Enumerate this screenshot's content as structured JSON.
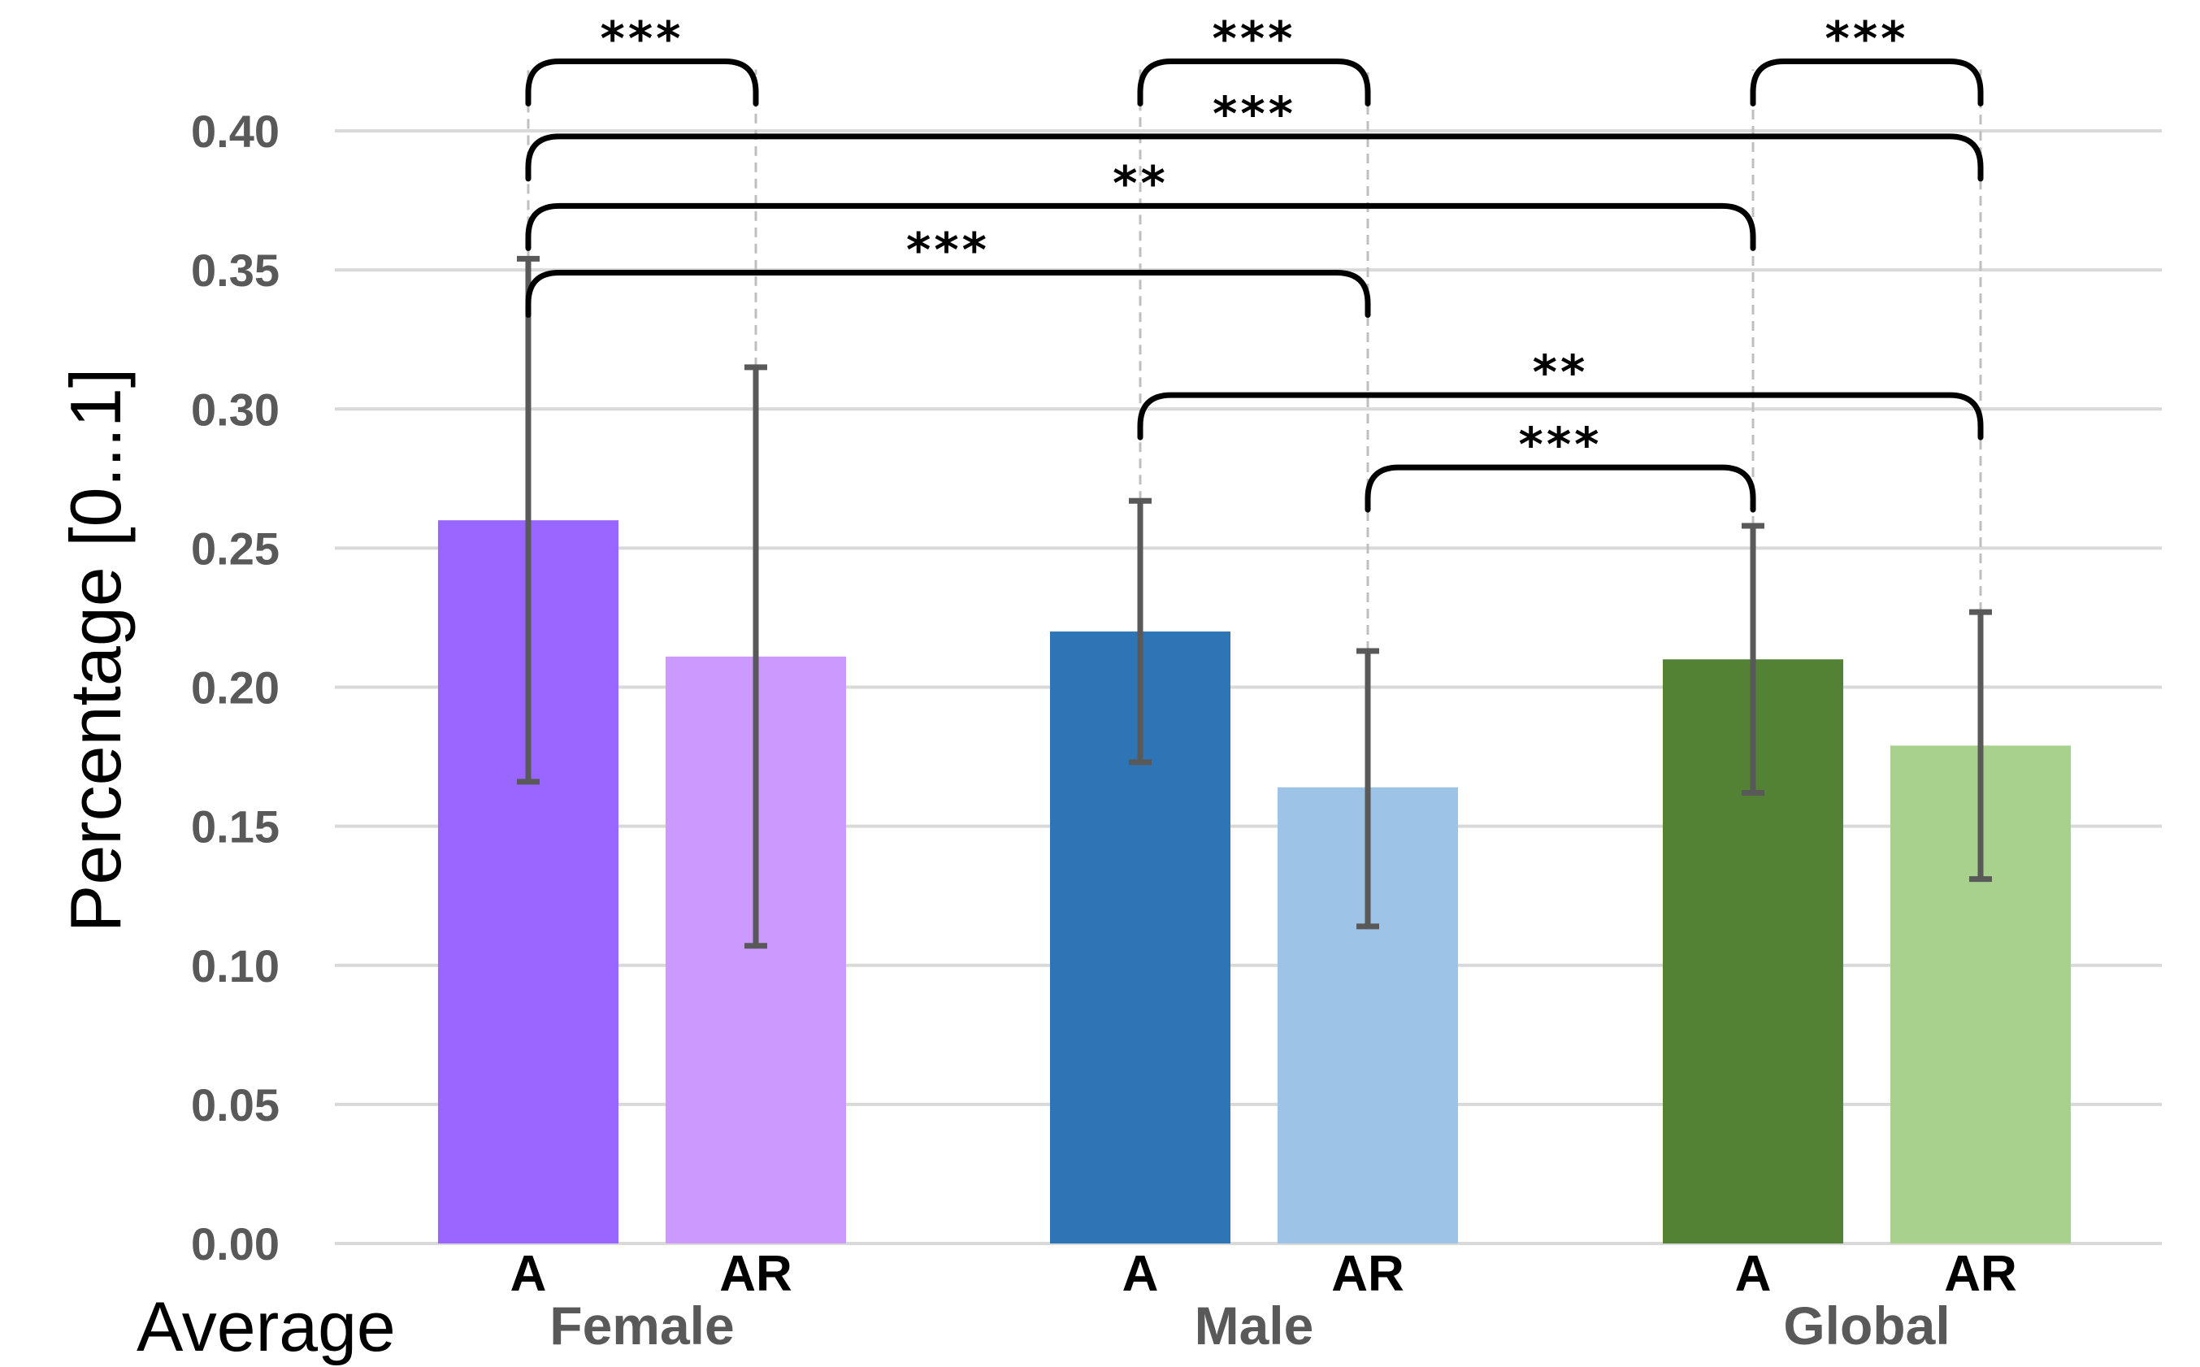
{
  "chart_data": {
    "type": "bar",
    "ylabel": "Percentage [0...1]",
    "xlabel": "Average",
    "ylim": [
      0,
      0.4
    ],
    "yticks": [
      "0.00",
      "0.05",
      "0.10",
      "0.15",
      "0.20",
      "0.25",
      "0.30",
      "0.35",
      "0.40"
    ],
    "yticks_values": [
      0,
      0.05,
      0.1,
      0.15,
      0.2,
      0.25,
      0.3,
      0.35,
      0.4
    ],
    "grid": true,
    "groups": [
      "Female",
      "Male",
      "Global"
    ],
    "bars": [
      {
        "group": "Female",
        "label": "A",
        "value": 0.26,
        "err_low": 0.166,
        "err_high": 0.354,
        "color": "#9966ff"
      },
      {
        "group": "Female",
        "label": "AR",
        "value": 0.211,
        "err_low": 0.107,
        "err_high": 0.315,
        "color": "#cc99ff"
      },
      {
        "group": "Male",
        "label": "A",
        "value": 0.22,
        "err_low": 0.173,
        "err_high": 0.267,
        "color": "#2e75b6"
      },
      {
        "group": "Male",
        "label": "AR",
        "value": 0.164,
        "err_low": 0.114,
        "err_high": 0.213,
        "color": "#9dc3e6"
      },
      {
        "group": "Global",
        "label": "A",
        "value": 0.21,
        "err_low": 0.162,
        "err_high": 0.258,
        "color": "#548235"
      },
      {
        "group": "Global",
        "label": "AR",
        "value": 0.179,
        "err_low": 0.131,
        "err_high": 0.227,
        "color": "#a9d18e"
      }
    ],
    "significance": [
      {
        "from": 0,
        "to": 1,
        "stars": "***",
        "level": 0.425
      },
      {
        "from": 2,
        "to": 3,
        "stars": "***",
        "level": 0.425
      },
      {
        "from": 4,
        "to": 5,
        "stars": "***",
        "level": 0.425
      },
      {
        "from": 0,
        "to": 5,
        "stars": "***",
        "level": 0.398
      },
      {
        "from": 0,
        "to": 4,
        "stars": "**",
        "level": 0.373
      },
      {
        "from": 0,
        "to": 3,
        "stars": "***",
        "level": 0.349
      },
      {
        "from": 2,
        "to": 5,
        "stars": "**",
        "level": 0.305
      },
      {
        "from": 3,
        "to": 4,
        "stars": "***",
        "level": 0.279
      }
    ]
  }
}
